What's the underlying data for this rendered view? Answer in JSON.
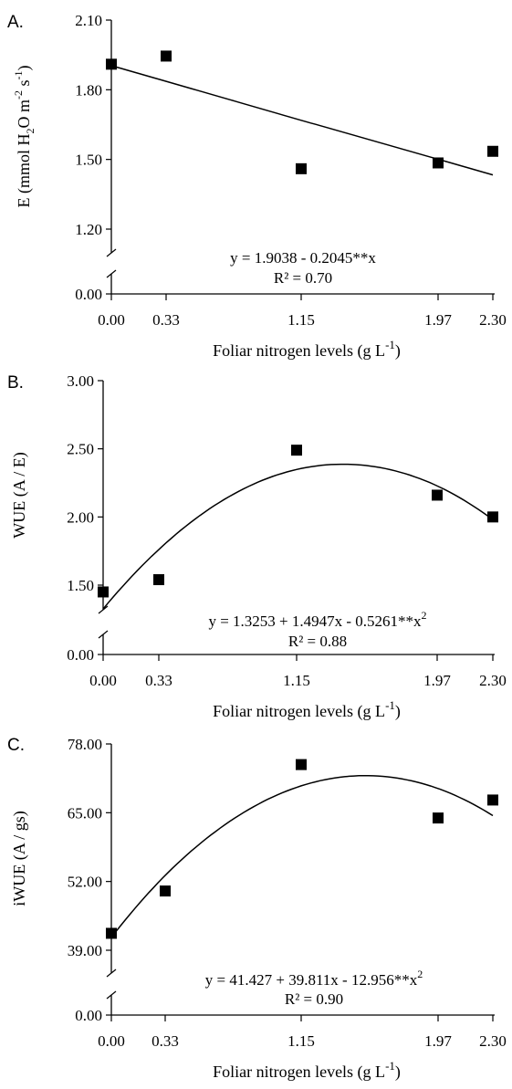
{
  "chart_data": [
    {
      "type": "scatter",
      "panel_label": "A.",
      "ylabel": {
        "main": "E (mmol H",
        "sub1": "2",
        "mid": "O m",
        "sup1": "-2",
        "end": " s",
        "sup2": "-1",
        "close": ")"
      },
      "xlabel": {
        "main": "Foliar nitrogen levels (g L",
        "sup": "-1",
        "close": ")"
      },
      "x_ticks": [
        "0.00",
        "0.33",
        "1.15",
        "1.97",
        "2.30"
      ],
      "y_ticks": [
        "1.20",
        "1.50",
        "1.80",
        "2.10"
      ],
      "y_break_tick": "0.00",
      "ylim": [
        1.2,
        2.1
      ],
      "x": [
        0.0,
        0.33,
        1.15,
        1.97,
        2.3
      ],
      "y": [
        1.91,
        1.945,
        1.46,
        1.485,
        1.535
      ],
      "fit": {
        "kind": "linear",
        "coef": [
          1.9038,
          -0.2045
        ]
      },
      "equation": "y = 1.9038 - 0.2045**x",
      "equation_sup": "",
      "r2": "R² = 0.70"
    },
    {
      "type": "scatter",
      "panel_label": "B.",
      "ylabel": {
        "main": "WUE (A / E)"
      },
      "xlabel": {
        "main": "Foliar nitrogen levels (g L",
        "sup": "-1",
        "close": ")"
      },
      "x_ticks": [
        "0.00",
        "0.33",
        "1.15",
        "1.97",
        "2.30"
      ],
      "y_ticks": [
        "1.50",
        "2.00",
        "2.50",
        "3.00"
      ],
      "y_break_tick": "0.00",
      "ylim": [
        1.5,
        3.0
      ],
      "x": [
        0.0,
        0.33,
        1.15,
        1.97,
        2.3
      ],
      "y": [
        1.45,
        1.54,
        2.49,
        2.16,
        2.0
      ],
      "fit": {
        "kind": "quadratic",
        "coef": [
          1.3253,
          1.4947,
          -0.5261
        ]
      },
      "equation": "y = 1.3253 + 1.4947x - 0.5261**x",
      "equation_sup": "2",
      "r2": "R² = 0.88"
    },
    {
      "type": "scatter",
      "panel_label": "C.",
      "ylabel": {
        "main": "iWUE (A / gs)"
      },
      "xlabel": {
        "main": "Foliar nitrogen levels (g L",
        "sup": "-1",
        "close": ")"
      },
      "x_ticks": [
        "0.00",
        "0.33",
        "1.15",
        "1.97",
        "2.30"
      ],
      "y_ticks": [
        "39.00",
        "52.00",
        "65.00",
        "78.00"
      ],
      "y_break_tick": "0.00",
      "ylim": [
        39.0,
        78.0
      ],
      "x": [
        0.0,
        0.33,
        1.15,
        1.97,
        2.3
      ],
      "y": [
        42.2,
        50.2,
        74.1,
        64.0,
        67.4
      ],
      "fit": {
        "kind": "quadratic",
        "coef": [
          41.427,
          39.811,
          -12.956
        ]
      },
      "equation": "y = 41.427 + 39.811x - 12.956**x",
      "equation_sup": "2",
      "r2": "R² = 0.90"
    }
  ]
}
